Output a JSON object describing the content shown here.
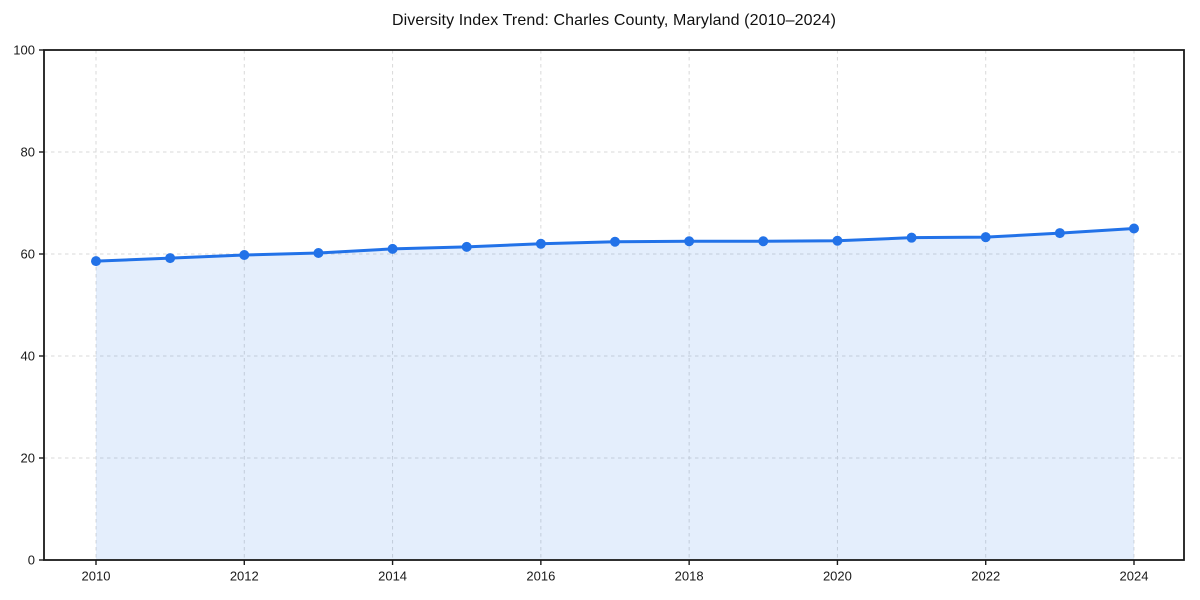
{
  "chart_data": {
    "type": "line",
    "title": "Diversity Index Trend: Charles County, Maryland (2010–2024)",
    "x": [
      2010,
      2011,
      2012,
      2013,
      2014,
      2015,
      2016,
      2017,
      2018,
      2019,
      2020,
      2021,
      2022,
      2023,
      2024
    ],
    "series": [
      {
        "name": "Diversity Index",
        "values": [
          58.6,
          59.2,
          59.8,
          60.2,
          61.0,
          61.4,
          62.0,
          62.4,
          62.5,
          62.5,
          62.6,
          63.2,
          63.3,
          64.1,
          65.0
        ]
      }
    ],
    "xlabel": "",
    "ylabel": "",
    "ylim": [
      0,
      100
    ],
    "yticks": [
      0,
      20,
      40,
      60,
      80,
      100
    ],
    "xticks": [
      2010,
      2012,
      2014,
      2016,
      2018,
      2020,
      2022,
      2024
    ],
    "grid": true,
    "grid_style": "dashed",
    "legend": false,
    "area_fill": true,
    "marker": "circle",
    "colors": {
      "line": "#2272e8",
      "marker": "#2272e8",
      "fill": "rgba(34,114,232,0.12)",
      "grid": "#d9d9d9",
      "spine": "#1a1a1a",
      "tick_text": "#1a1a1a",
      "background": "#ffffff"
    }
  }
}
